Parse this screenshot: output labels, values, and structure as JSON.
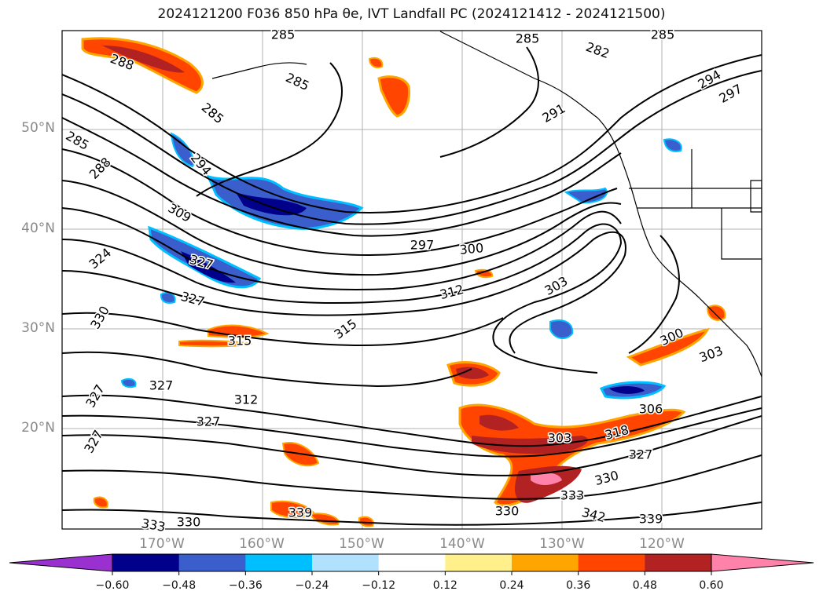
{
  "title": "2024121200 F036 850 hPa θe, IVT Landfall PC (2024121412 - 2024121500)",
  "map": {
    "projection": "lat-lon",
    "lat_ticks": [
      "50°N",
      "40°N",
      "30°N",
      "20°N"
    ],
    "lon_ticks": [
      "170°W",
      "160°W",
      "150°W",
      "140°W",
      "130°W",
      "120°W"
    ],
    "grid": true,
    "field_name": "850 hPa θe",
    "contour_color": "#000000"
  },
  "contour_labels": [
    "288",
    "285",
    "285",
    "285",
    "285",
    "288",
    "294",
    "309",
    "324",
    "327",
    "327",
    "330",
    "327",
    "327",
    "315",
    "312",
    "327",
    "327",
    "333",
    "330",
    "297",
    "300",
    "312",
    "303",
    "315",
    "300",
    "303",
    "306",
    "327",
    "330",
    "333",
    "330",
    "342",
    "339",
    "339",
    "294",
    "297",
    "291",
    "285",
    "282",
    "285",
    "318",
    "303"
  ],
  "colorbar": {
    "ticks": [
      "−0.60",
      "−0.48",
      "−0.36",
      "−0.24",
      "−0.12",
      "0.12",
      "0.24",
      "0.36",
      "0.48",
      "0.60"
    ],
    "colors": [
      "#9b30d0",
      "#00008b",
      "#3a5fcd",
      "#00bfff",
      "#b0e2ff",
      "#ffffff",
      "#fff08c",
      "#ffa500",
      "#ff4500",
      "#b22222",
      "#ff82ab"
    ],
    "extend": "both"
  }
}
